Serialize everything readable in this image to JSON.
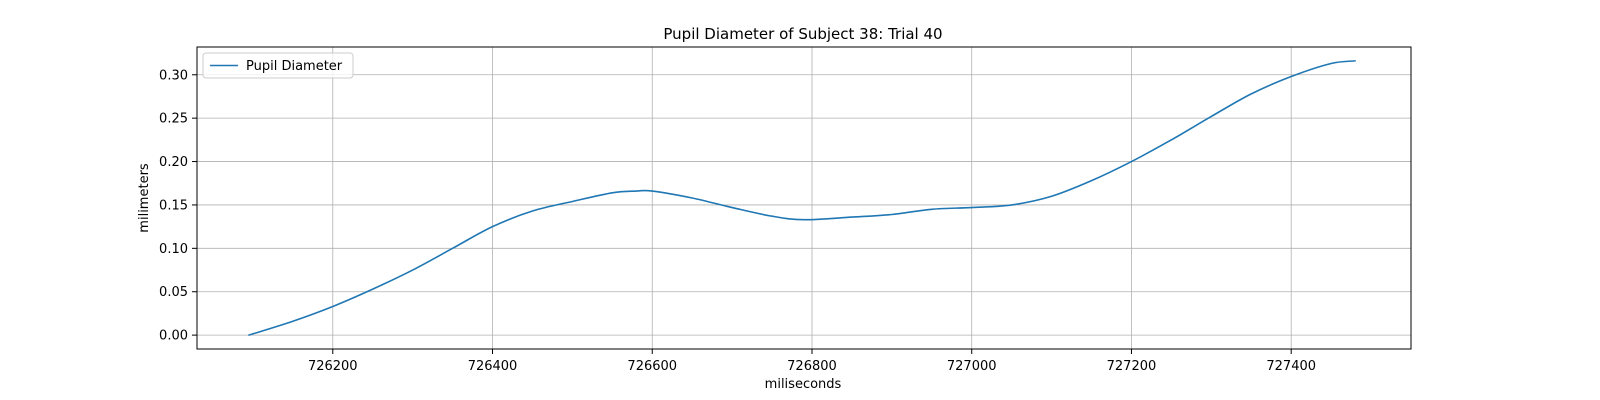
{
  "chart_data": {
    "type": "line",
    "title": "Pupil Diameter of Subject 38: Trial 40",
    "xlabel": "miliseconds",
    "ylabel": "milimeters",
    "xlim": [
      726030,
      727550
    ],
    "ylim": [
      -0.016,
      0.332
    ],
    "xticks": [
      726200,
      726400,
      726600,
      726800,
      727000,
      727200,
      727400
    ],
    "yticks": [
      0.0,
      0.05,
      0.1,
      0.15,
      0.2,
      0.25,
      0.3
    ],
    "ytick_labels": [
      "0.00",
      "0.05",
      "0.10",
      "0.15",
      "0.20",
      "0.25",
      "0.30"
    ],
    "grid": true,
    "legend": {
      "position": "top-left"
    },
    "series": [
      {
        "name": "Pupil Diameter",
        "color": "#1f77b4",
        "x": [
          726095,
          726150,
          726200,
          726250,
          726300,
          726350,
          726400,
          726450,
          726500,
          726550,
          726580,
          726600,
          726650,
          726700,
          726750,
          726790,
          726850,
          726900,
          726950,
          727000,
          727050,
          727100,
          727150,
          727200,
          727250,
          727300,
          727350,
          727400,
          727450,
          727480
        ],
        "y": [
          0.0,
          0.016,
          0.033,
          0.053,
          0.075,
          0.1,
          0.125,
          0.143,
          0.154,
          0.164,
          0.166,
          0.166,
          0.158,
          0.147,
          0.137,
          0.133,
          0.136,
          0.139,
          0.145,
          0.147,
          0.15,
          0.16,
          0.178,
          0.2,
          0.225,
          0.252,
          0.278,
          0.298,
          0.313,
          0.316
        ]
      }
    ]
  }
}
